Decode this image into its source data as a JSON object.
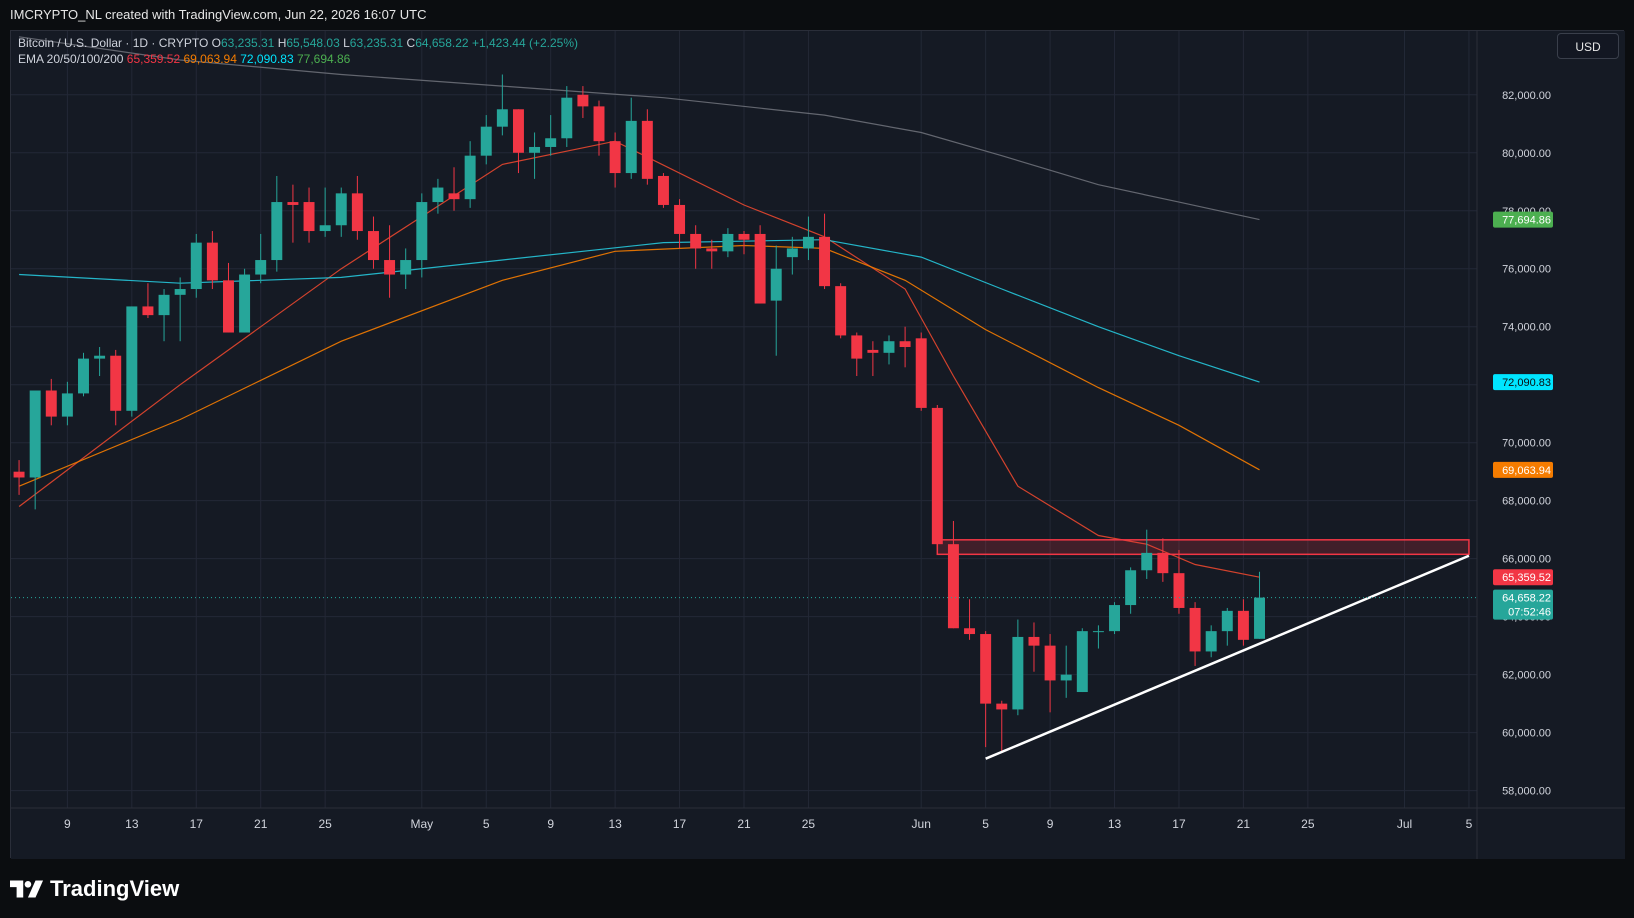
{
  "header": {
    "caption": "IMCRYPTO_NL created with TradingView.com, Jun 22, 2026 16:07 UTC"
  },
  "legend": {
    "symbol": "Bitcoin / U.S. Dollar · 1D · CRYPTO",
    "o_label": "O",
    "o": "63,235.31",
    "h_label": "H",
    "h": "65,548.03",
    "l_label": "L",
    "l": "63,235.31",
    "c_label": "C",
    "c": "64,658.22",
    "change": "+1,423.44 (+2.25%)",
    "ema_label": "EMA 20/50/100/200",
    "ema20": "65,359.52",
    "ema50": "69,063.94",
    "ema100": "72,090.83",
    "ema200": "77,694.86"
  },
  "currency_button": "USD",
  "footer": {
    "brand": "TradingView"
  },
  "colors": {
    "background": "#151a24",
    "up": "#26a69a",
    "down": "#f23645",
    "ema20": "#e8472f",
    "ema50": "#f57c00",
    "ema100": "#26c6da",
    "ema200": "#6b6f78",
    "zone": "#f23645",
    "trendline": "#ffffff"
  },
  "chart_data": {
    "type": "candlestick",
    "title": "Bitcoin / U.S. Dollar · 1D · CRYPTO",
    "y_ticks": [
      "82,000.00",
      "80,000.00",
      "78,000.00",
      "76,000.00",
      "74,000.00",
      "72,000.00",
      "70,000.00",
      "68,000.00",
      "66,000.00",
      "64,000.00",
      "62,000.00",
      "60,000.00",
      "58,000.00"
    ],
    "y_tick_values": [
      82000,
      80000,
      78000,
      76000,
      74000,
      72000,
      70000,
      68000,
      66000,
      64000,
      62000,
      60000,
      58000
    ],
    "ylim": [
      57400,
      84200
    ],
    "x_ticks": [
      {
        "date": "2026-04-09",
        "label": "9"
      },
      {
        "date": "2026-04-13",
        "label": "13"
      },
      {
        "date": "2026-04-17",
        "label": "17"
      },
      {
        "date": "2026-04-21",
        "label": "21"
      },
      {
        "date": "2026-04-25",
        "label": "25"
      },
      {
        "date": "2026-05-01",
        "label": "May"
      },
      {
        "date": "2026-05-05",
        "label": "5"
      },
      {
        "date": "2026-05-09",
        "label": "9"
      },
      {
        "date": "2026-05-13",
        "label": "13"
      },
      {
        "date": "2026-05-17",
        "label": "17"
      },
      {
        "date": "2026-05-21",
        "label": "21"
      },
      {
        "date": "2026-05-25",
        "label": "25"
      },
      {
        "date": "2026-06-01",
        "label": "Jun"
      },
      {
        "date": "2026-06-05",
        "label": "5"
      },
      {
        "date": "2026-06-09",
        "label": "9"
      },
      {
        "date": "2026-06-13",
        "label": "13"
      },
      {
        "date": "2026-06-17",
        "label": "17"
      },
      {
        "date": "2026-06-21",
        "label": "21"
      },
      {
        "date": "2026-06-25",
        "label": "25"
      },
      {
        "date": "2026-07-01",
        "label": "Jul"
      },
      {
        "date": "2026-07-05",
        "label": "5"
      }
    ],
    "xlim": [
      "2026-04-05T12:00",
      "2026-07-05T12:00"
    ],
    "candles": [
      {
        "d": "2026-04-06",
        "o": 69000,
        "h": 69400,
        "l": 68200,
        "c": 68800
      },
      {
        "d": "2026-04-07",
        "o": 68800,
        "h": 71700,
        "l": 67700,
        "c": 71800
      },
      {
        "d": "2026-04-08",
        "o": 71800,
        "h": 72200,
        "l": 70600,
        "c": 70900
      },
      {
        "d": "2026-04-09",
        "o": 70900,
        "h": 72100,
        "l": 70600,
        "c": 71700
      },
      {
        "d": "2026-04-10",
        "o": 71700,
        "h": 73100,
        "l": 71600,
        "c": 72900
      },
      {
        "d": "2026-04-11",
        "o": 72900,
        "h": 73300,
        "l": 72300,
        "c": 73000
      },
      {
        "d": "2026-04-12",
        "o": 73000,
        "h": 73200,
        "l": 70600,
        "c": 71100
      },
      {
        "d": "2026-04-13",
        "o": 71100,
        "h": 74700,
        "l": 70900,
        "c": 74700
      },
      {
        "d": "2026-04-14",
        "o": 74700,
        "h": 75500,
        "l": 74300,
        "c": 74400
      },
      {
        "d": "2026-04-15",
        "o": 74400,
        "h": 75300,
        "l": 73500,
        "c": 75100
      },
      {
        "d": "2026-04-16",
        "o": 75100,
        "h": 75700,
        "l": 73500,
        "c": 75300
      },
      {
        "d": "2026-04-17",
        "o": 75300,
        "h": 77200,
        "l": 75000,
        "c": 76900
      },
      {
        "d": "2026-04-18",
        "o": 76900,
        "h": 77300,
        "l": 75300,
        "c": 75600
      },
      {
        "d": "2026-04-19",
        "o": 75600,
        "h": 76200,
        "l": 73800,
        "c": 73800
      },
      {
        "d": "2026-04-20",
        "o": 73800,
        "h": 76000,
        "l": 73800,
        "c": 75800
      },
      {
        "d": "2026-04-21",
        "o": 75800,
        "h": 77200,
        "l": 75500,
        "c": 76300
      },
      {
        "d": "2026-04-22",
        "o": 76300,
        "h": 79200,
        "l": 75900,
        "c": 78300
      },
      {
        "d": "2026-04-23",
        "o": 78300,
        "h": 78900,
        "l": 76900,
        "c": 78200
      },
      {
        "d": "2026-04-24",
        "o": 78300,
        "h": 78800,
        "l": 76900,
        "c": 77300
      },
      {
        "d": "2026-04-25",
        "o": 77300,
        "h": 78800,
        "l": 77100,
        "c": 77500
      },
      {
        "d": "2026-04-26",
        "o": 77500,
        "h": 78800,
        "l": 77100,
        "c": 78600
      },
      {
        "d": "2026-04-27",
        "o": 78600,
        "h": 79200,
        "l": 77000,
        "c": 77300
      },
      {
        "d": "2026-04-28",
        "o": 77300,
        "h": 77800,
        "l": 76000,
        "c": 76300
      },
      {
        "d": "2026-04-29",
        "o": 76300,
        "h": 77500,
        "l": 75000,
        "c": 75800
      },
      {
        "d": "2026-04-30",
        "o": 75800,
        "h": 76700,
        "l": 75300,
        "c": 76300
      },
      {
        "d": "2026-05-01",
        "o": 76300,
        "h": 78600,
        "l": 75700,
        "c": 78300
      },
      {
        "d": "2026-05-02",
        "o": 78300,
        "h": 79100,
        "l": 77900,
        "c": 78800
      },
      {
        "d": "2026-05-03",
        "o": 78600,
        "h": 79500,
        "l": 78000,
        "c": 78400
      },
      {
        "d": "2026-05-04",
        "o": 78400,
        "h": 80400,
        "l": 78100,
        "c": 79900
      },
      {
        "d": "2026-05-05",
        "o": 79900,
        "h": 81300,
        "l": 79600,
        "c": 80900
      },
      {
        "d": "2026-05-06",
        "o": 80900,
        "h": 82700,
        "l": 80600,
        "c": 81500
      },
      {
        "d": "2026-05-07",
        "o": 81500,
        "h": 81500,
        "l": 79300,
        "c": 80000
      },
      {
        "d": "2026-05-08",
        "o": 80000,
        "h": 80700,
        "l": 79100,
        "c": 80200
      },
      {
        "d": "2026-05-09",
        "o": 80200,
        "h": 81300,
        "l": 79900,
        "c": 80500
      },
      {
        "d": "2026-05-10",
        "o": 80500,
        "h": 82300,
        "l": 80200,
        "c": 81900
      },
      {
        "d": "2026-05-11",
        "o": 82000,
        "h": 82300,
        "l": 81200,
        "c": 81600
      },
      {
        "d": "2026-05-12",
        "o": 81600,
        "h": 81800,
        "l": 79900,
        "c": 80400
      },
      {
        "d": "2026-05-13",
        "o": 80400,
        "h": 80700,
        "l": 78800,
        "c": 79300
      },
      {
        "d": "2026-05-14",
        "o": 79300,
        "h": 81900,
        "l": 79100,
        "c": 81100
      },
      {
        "d": "2026-05-15",
        "o": 81100,
        "h": 81500,
        "l": 78900,
        "c": 79100
      },
      {
        "d": "2026-05-16",
        "o": 79200,
        "h": 79300,
        "l": 78100,
        "c": 78200
      },
      {
        "d": "2026-05-17",
        "o": 78200,
        "h": 78400,
        "l": 76700,
        "c": 77200
      },
      {
        "d": "2026-05-18",
        "o": 77200,
        "h": 77500,
        "l": 76000,
        "c": 76700
      },
      {
        "d": "2026-05-19",
        "o": 76700,
        "h": 77000,
        "l": 76000,
        "c": 76600
      },
      {
        "d": "2026-05-20",
        "o": 76600,
        "h": 77400,
        "l": 76400,
        "c": 77200
      },
      {
        "d": "2026-05-21",
        "o": 77200,
        "h": 77300,
        "l": 76500,
        "c": 77000
      },
      {
        "d": "2026-05-22",
        "o": 77200,
        "h": 77500,
        "l": 74800,
        "c": 74800
      },
      {
        "d": "2026-05-23",
        "o": 74900,
        "h": 76800,
        "l": 73000,
        "c": 76000
      },
      {
        "d": "2026-05-24",
        "o": 76400,
        "h": 77100,
        "l": 75800,
        "c": 76700
      },
      {
        "d": "2026-05-25",
        "o": 76700,
        "h": 77800,
        "l": 76300,
        "c": 77100
      },
      {
        "d": "2026-05-26",
        "o": 77100,
        "h": 77900,
        "l": 75300,
        "c": 75400
      },
      {
        "d": "2026-05-27",
        "o": 75400,
        "h": 75500,
        "l": 73600,
        "c": 73700
      },
      {
        "d": "2026-05-28",
        "o": 73700,
        "h": 73800,
        "l": 72300,
        "c": 72900
      },
      {
        "d": "2026-05-29",
        "o": 73200,
        "h": 73500,
        "l": 72300,
        "c": 73100
      },
      {
        "d": "2026-05-30",
        "o": 73100,
        "h": 73700,
        "l": 72700,
        "c": 73500
      },
      {
        "d": "2026-05-31",
        "o": 73500,
        "h": 74000,
        "l": 72600,
        "c": 73300
      },
      {
        "d": "2026-06-01",
        "o": 73600,
        "h": 73800,
        "l": 71100,
        "c": 71200
      },
      {
        "d": "2026-06-02",
        "o": 71200,
        "h": 71300,
        "l": 66400,
        "c": 66500
      },
      {
        "d": "2026-06-03",
        "o": 66500,
        "h": 67300,
        "l": 63600,
        "c": 63600
      },
      {
        "d": "2026-06-04",
        "o": 63600,
        "h": 64600,
        "l": 63200,
        "c": 63400
      },
      {
        "d": "2026-06-05",
        "o": 63400,
        "h": 63500,
        "l": 59500,
        "c": 61000
      },
      {
        "d": "2026-06-06",
        "o": 61000,
        "h": 61100,
        "l": 59300,
        "c": 60800
      },
      {
        "d": "2026-06-07",
        "o": 60800,
        "h": 63900,
        "l": 60600,
        "c": 63300
      },
      {
        "d": "2026-06-08",
        "o": 63300,
        "h": 63800,
        "l": 62100,
        "c": 63000
      },
      {
        "d": "2026-06-09",
        "o": 63000,
        "h": 63400,
        "l": 60700,
        "c": 61800
      },
      {
        "d": "2026-06-10",
        "o": 61800,
        "h": 63000,
        "l": 61200,
        "c": 62000
      },
      {
        "d": "2026-06-11",
        "o": 61400,
        "h": 63600,
        "l": 61400,
        "c": 63500
      },
      {
        "d": "2026-06-12",
        "o": 63500,
        "h": 63700,
        "l": 62900,
        "c": 63500
      },
      {
        "d": "2026-06-13",
        "o": 63500,
        "h": 64500,
        "l": 63400,
        "c": 64400
      },
      {
        "d": "2026-06-14",
        "o": 64400,
        "h": 65700,
        "l": 64100,
        "c": 65600
      },
      {
        "d": "2026-06-15",
        "o": 65600,
        "h": 67000,
        "l": 65300,
        "c": 66200
      },
      {
        "d": "2026-06-16",
        "o": 66200,
        "h": 66700,
        "l": 65200,
        "c": 65500
      },
      {
        "d": "2026-06-17",
        "o": 65500,
        "h": 66300,
        "l": 64100,
        "c": 64300
      },
      {
        "d": "2026-06-18",
        "o": 64300,
        "h": 64500,
        "l": 62300,
        "c": 62800
      },
      {
        "d": "2026-06-19",
        "o": 62800,
        "h": 63700,
        "l": 62600,
        "c": 63500
      },
      {
        "d": "2026-06-20",
        "o": 63500,
        "h": 64300,
        "l": 63000,
        "c": 64200
      },
      {
        "d": "2026-06-21",
        "o": 64200,
        "h": 64600,
        "l": 63000,
        "c": 63200
      },
      {
        "d": "2026-06-22",
        "o": 63235.31,
        "h": 65548.03,
        "l": 63235.31,
        "c": 64658.22
      }
    ],
    "ema": [
      {
        "name": "EMA 20",
        "period": 20,
        "color": "#e8472f",
        "last": 65359.52,
        "points": [
          [
            "2026-04-06",
            67800
          ],
          [
            "2026-04-16",
            72000
          ],
          [
            "2026-04-26",
            76000
          ],
          [
            "2026-05-06",
            79600
          ],
          [
            "2026-05-13",
            80400
          ],
          [
            "2026-05-21",
            78200
          ],
          [
            "2026-05-26",
            77100
          ],
          [
            "2026-05-31",
            75300
          ],
          [
            "2026-06-03",
            72300
          ],
          [
            "2026-06-07",
            68500
          ],
          [
            "2026-06-12",
            66800
          ],
          [
            "2026-06-15",
            66500
          ],
          [
            "2026-06-18",
            65800
          ],
          [
            "2026-06-22",
            65359.52
          ]
        ]
      },
      {
        "name": "EMA 50",
        "period": 50,
        "color": "#f57c00",
        "last": 69063.94,
        "points": [
          [
            "2026-04-06",
            68500
          ],
          [
            "2026-04-16",
            70800
          ],
          [
            "2026-04-26",
            73500
          ],
          [
            "2026-05-06",
            75600
          ],
          [
            "2026-05-13",
            76600
          ],
          [
            "2026-05-21",
            76800
          ],
          [
            "2026-05-26",
            76700
          ],
          [
            "2026-05-31",
            75600
          ],
          [
            "2026-06-05",
            73900
          ],
          [
            "2026-06-12",
            71900
          ],
          [
            "2026-06-17",
            70600
          ],
          [
            "2026-06-22",
            69063.94
          ]
        ]
      },
      {
        "name": "EMA 100",
        "period": 100,
        "color": "#26c6da",
        "last": 72090.83,
        "points": [
          [
            "2026-04-06",
            75800
          ],
          [
            "2026-04-16",
            75500
          ],
          [
            "2026-04-26",
            75700
          ],
          [
            "2026-05-06",
            76300
          ],
          [
            "2026-05-16",
            76900
          ],
          [
            "2026-05-26",
            77000
          ],
          [
            "2026-06-01",
            76400
          ],
          [
            "2026-06-06",
            75300
          ],
          [
            "2026-06-12",
            74000
          ],
          [
            "2026-06-17",
            73000
          ],
          [
            "2026-06-22",
            72090.83
          ]
        ]
      },
      {
        "name": "EMA 200",
        "period": 200,
        "color": "#6b6f78",
        "last": 77694.86,
        "points": [
          [
            "2026-04-06",
            84000
          ],
          [
            "2026-04-16",
            83200
          ],
          [
            "2026-04-26",
            82700
          ],
          [
            "2026-05-06",
            82300
          ],
          [
            "2026-05-16",
            81900
          ],
          [
            "2026-05-26",
            81300
          ],
          [
            "2026-06-01",
            80700
          ],
          [
            "2026-06-06",
            79900
          ],
          [
            "2026-06-12",
            78900
          ],
          [
            "2026-06-17",
            78300
          ],
          [
            "2026-06-22",
            77694.86
          ]
        ]
      }
    ],
    "zones": [
      {
        "x1": "2026-06-02",
        "x2": "2026-07-05",
        "y_top": 66650,
        "y_bottom": 66150
      }
    ],
    "trendlines": [
      {
        "x1": "2026-06-05",
        "y1": 59100,
        "x2": "2026-07-05",
        "y2": 66100
      }
    ],
    "price_labels": [
      {
        "text": "77,694.86",
        "value": 77694.86,
        "bg": "#4caf50",
        "fg": "#ffffff"
      },
      {
        "text": "72,090.83",
        "value": 72090.83,
        "bg": "#00e5ff",
        "fg": "#0b0d10"
      },
      {
        "text": "69,063.94",
        "value": 69063.94,
        "bg": "#f57c00",
        "fg": "#ffffff"
      },
      {
        "text": "65,359.52",
        "value": 65359.52,
        "bg": "#f23645",
        "fg": "#ffffff"
      },
      {
        "text": "64,658.22",
        "value": 64658.22,
        "bg": "#26a69a",
        "fg": "#ffffff",
        "sub": "07:52:46"
      }
    ],
    "last_price": 64658.22
  }
}
